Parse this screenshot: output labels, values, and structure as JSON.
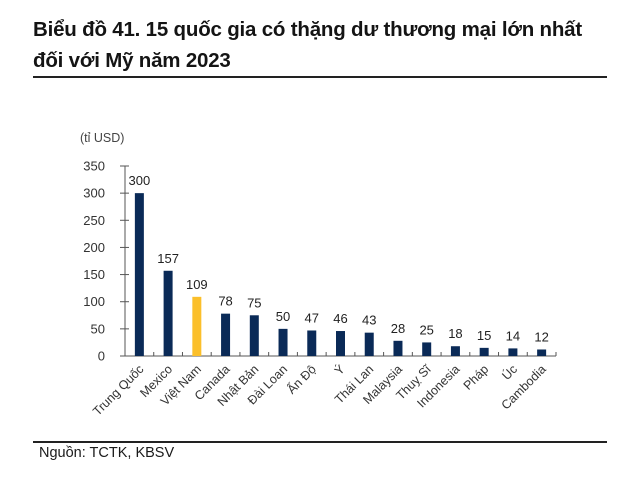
{
  "header": {
    "title": "Biểu đồ 41. 15 quốc gia có thặng dư thương mại lớn nhất đối với Mỹ năm 2023"
  },
  "footer": {
    "source": "Nguồn: TCTK, KBSV"
  },
  "colors": {
    "bar_default": "#0a2a57",
    "bar_highlight": "#fbbf2a",
    "axis": "#555555",
    "text": "#222222"
  },
  "chart_data": {
    "type": "bar",
    "title": "Biểu đồ 41. 15 quốc gia có thặng dư thương mại lớn nhất đối với Mỹ năm 2023",
    "unit_label": "(tỉ USD)",
    "xlabel": "",
    "ylabel": "(tỉ USD)",
    "ylim": [
      0,
      350
    ],
    "yticks": [
      0,
      50,
      100,
      150,
      200,
      250,
      300,
      350
    ],
    "grid": false,
    "legend": null,
    "categories": [
      "Trung Quốc",
      "Mexico",
      "Việt Nam",
      "Canada",
      "Nhật Bản",
      "Đài Loan",
      "Ấn Độ",
      "Ý",
      "Thái Lan",
      "Malaysia",
      "Thuỵ Sĩ",
      "Indonesia",
      "Pháp",
      "Úc",
      "Cambodia"
    ],
    "values": [
      300,
      157,
      109,
      78,
      75,
      50,
      47,
      46,
      43,
      28,
      25,
      18,
      15,
      14,
      12
    ],
    "highlight_index": 2,
    "data_labels": true,
    "source": "Nguồn: TCTK, KBSV"
  }
}
